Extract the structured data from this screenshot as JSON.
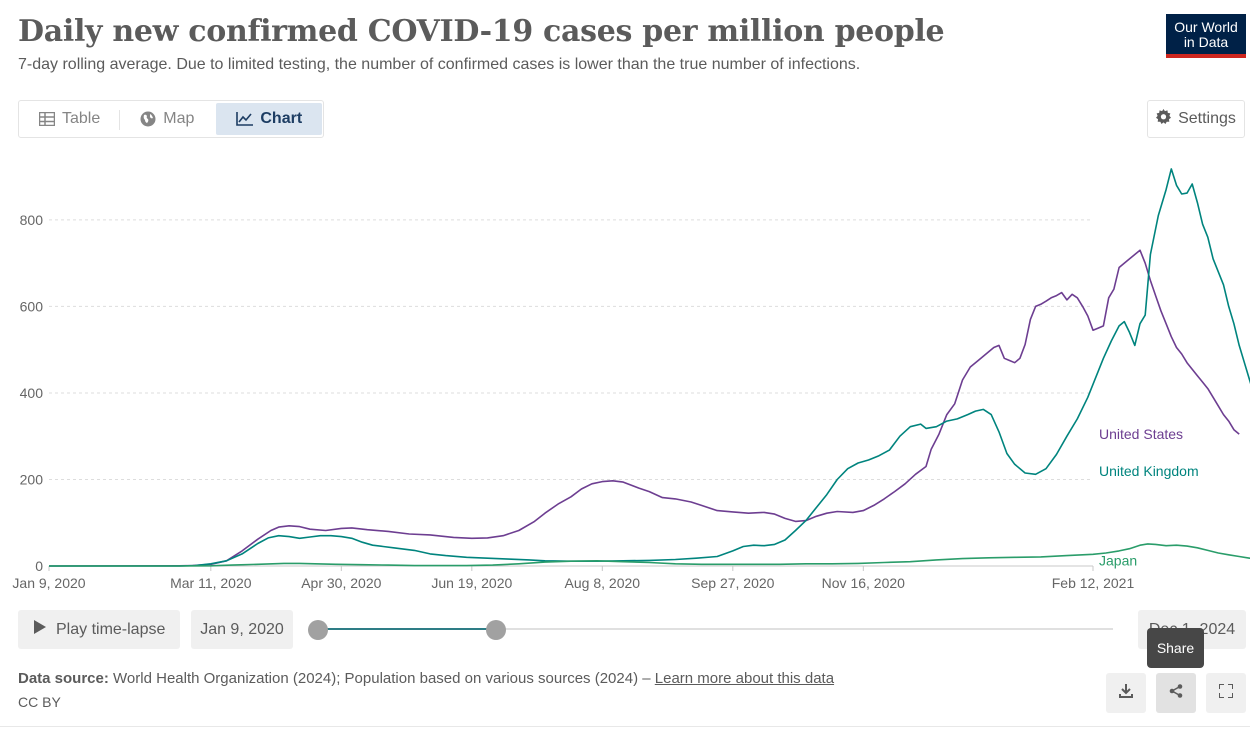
{
  "header": {
    "title": "Daily new confirmed COVID-19 cases per million people",
    "subtitle": "7-day rolling average. Due to limited testing, the number of confirmed cases is lower than the true number of infections.",
    "logo_line1": "Our World",
    "logo_line2": "in Data"
  },
  "tabs": [
    {
      "label": "Table",
      "icon": "table-icon"
    },
    {
      "label": "Map",
      "icon": "globe-icon"
    },
    {
      "label": "Chart",
      "icon": "line-chart-icon",
      "active": true
    }
  ],
  "settings_label": "Settings",
  "timeline": {
    "play_label": "Play time-lapse",
    "start_date": "Jan 9, 2020",
    "end_date": "Dec 1, 2024"
  },
  "tooltip": "Share",
  "footer": {
    "source_label": "Data source:",
    "source_text": "World Health Organization (2024); Population based on various sources (2024) –",
    "learn_more": "Learn more about this data",
    "license": "CC BY"
  },
  "chart_data": {
    "type": "line",
    "title": "Daily new confirmed COVID-19 cases per million people",
    "xlabel": "",
    "ylabel": "",
    "ylim": [
      0,
      920
    ],
    "yticks": [
      0,
      200,
      400,
      600,
      800
    ],
    "x_range_days": [
      0,
      400
    ],
    "x_ticks": [
      {
        "day": 0,
        "label": "Jan 9, 2020"
      },
      {
        "day": 62,
        "label": "Mar 11, 2020"
      },
      {
        "day": 112,
        "label": "Apr 30, 2020"
      },
      {
        "day": 162,
        "label": "Jun 19, 2020"
      },
      {
        "day": 212,
        "label": "Aug 8, 2020"
      },
      {
        "day": 262,
        "label": "Sep 27, 2020"
      },
      {
        "day": 312,
        "label": "Nov 16, 2020"
      },
      {
        "day": 400,
        "label": "Feb 12, 2021"
      }
    ],
    "grid": "horizontal",
    "legend": "labels at line ends (right)",
    "series": [
      {
        "name": "United States",
        "color": "#6d3e91",
        "points": [
          [
            0,
            0
          ],
          [
            50,
            0.5
          ],
          [
            55,
            1
          ],
          [
            62,
            4
          ],
          [
            68,
            12
          ],
          [
            74,
            35
          ],
          [
            80,
            62
          ],
          [
            85,
            82
          ],
          [
            88,
            90
          ],
          [
            92,
            93
          ],
          [
            96,
            91
          ],
          [
            100,
            85
          ],
          [
            106,
            82
          ],
          [
            112,
            87
          ],
          [
            116,
            88
          ],
          [
            122,
            84
          ],
          [
            130,
            80
          ],
          [
            138,
            74
          ],
          [
            146,
            72
          ],
          [
            155,
            66
          ],
          [
            162,
            64
          ],
          [
            168,
            65
          ],
          [
            174,
            70
          ],
          [
            180,
            82
          ],
          [
            186,
            103
          ],
          [
            190,
            122
          ],
          [
            195,
            143
          ],
          [
            200,
            160
          ],
          [
            204,
            178
          ],
          [
            208,
            190
          ],
          [
            212,
            195
          ],
          [
            216,
            197
          ],
          [
            220,
            194
          ],
          [
            226,
            180
          ],
          [
            230,
            172
          ],
          [
            235,
            158
          ],
          [
            240,
            155
          ],
          [
            246,
            148
          ],
          [
            250,
            140
          ],
          [
            256,
            128
          ],
          [
            262,
            125
          ],
          [
            268,
            122
          ],
          [
            274,
            124
          ],
          [
            278,
            120
          ],
          [
            282,
            110
          ],
          [
            286,
            103
          ],
          [
            290,
            105
          ],
          [
            294,
            115
          ],
          [
            298,
            122
          ],
          [
            302,
            126
          ],
          [
            308,
            124
          ],
          [
            312,
            128
          ],
          [
            316,
            140
          ],
          [
            320,
            155
          ],
          [
            324,
            172
          ],
          [
            328,
            190
          ],
          [
            332,
            212
          ],
          [
            336,
            230
          ],
          [
            338,
            270
          ],
          [
            341,
            305
          ],
          [
            344,
            350
          ],
          [
            347,
            375
          ],
          [
            350,
            430
          ],
          [
            353,
            460
          ],
          [
            356,
            475
          ],
          [
            359,
            490
          ],
          [
            362,
            505
          ],
          [
            364,
            510
          ],
          [
            366,
            480
          ],
          [
            368,
            475
          ],
          [
            370,
            470
          ],
          [
            372,
            480
          ],
          [
            374,
            512
          ],
          [
            376,
            570
          ],
          [
            378,
            600
          ],
          [
            380,
            605
          ],
          [
            382,
            612
          ],
          [
            384,
            620
          ],
          [
            386,
            625
          ],
          [
            388,
            632
          ],
          [
            390,
            615
          ],
          [
            392,
            628
          ],
          [
            394,
            620
          ],
          [
            396,
            600
          ],
          [
            398,
            578
          ],
          [
            400,
            545
          ],
          [
            402,
            550
          ],
          [
            404,
            555
          ],
          [
            406,
            620
          ],
          [
            408,
            640
          ],
          [
            410,
            690
          ],
          [
            413,
            705
          ],
          [
            416,
            720
          ],
          [
            418,
            730
          ],
          [
            420,
            700
          ],
          [
            422,
            660
          ],
          [
            424,
            625
          ],
          [
            426,
            590
          ],
          [
            428,
            560
          ],
          [
            430,
            530
          ],
          [
            432,
            505
          ],
          [
            434,
            490
          ],
          [
            436,
            470
          ],
          [
            438,
            455
          ],
          [
            440,
            440
          ],
          [
            442,
            425
          ],
          [
            444,
            410
          ],
          [
            446,
            390
          ],
          [
            448,
            370
          ],
          [
            450,
            350
          ],
          [
            452,
            335
          ],
          [
            454,
            315
          ],
          [
            456,
            305
          ]
        ]
      },
      {
        "name": "United Kingdom",
        "color": "#00847e",
        "points": [
          [
            0,
            0
          ],
          [
            50,
            0
          ],
          [
            56,
            1
          ],
          [
            62,
            5
          ],
          [
            68,
            12
          ],
          [
            74,
            28
          ],
          [
            80,
            52
          ],
          [
            84,
            65
          ],
          [
            88,
            70
          ],
          [
            92,
            68
          ],
          [
            96,
            64
          ],
          [
            100,
            67
          ],
          [
            104,
            70
          ],
          [
            108,
            70
          ],
          [
            112,
            68
          ],
          [
            116,
            64
          ],
          [
            120,
            55
          ],
          [
            124,
            48
          ],
          [
            128,
            45
          ],
          [
            132,
            42
          ],
          [
            140,
            36
          ],
          [
            146,
            28
          ],
          [
            152,
            24
          ],
          [
            160,
            20
          ],
          [
            168,
            18
          ],
          [
            176,
            16
          ],
          [
            184,
            14
          ],
          [
            190,
            12
          ],
          [
            200,
            11
          ],
          [
            210,
            11
          ],
          [
            220,
            12
          ],
          [
            230,
            13
          ],
          [
            240,
            15
          ],
          [
            248,
            18
          ],
          [
            256,
            22
          ],
          [
            262,
            35
          ],
          [
            266,
            45
          ],
          [
            270,
            48
          ],
          [
            274,
            47
          ],
          [
            278,
            50
          ],
          [
            282,
            60
          ],
          [
            286,
            82
          ],
          [
            290,
            105
          ],
          [
            294,
            135
          ],
          [
            298,
            165
          ],
          [
            302,
            200
          ],
          [
            306,
            225
          ],
          [
            310,
            238
          ],
          [
            314,
            245
          ],
          [
            318,
            255
          ],
          [
            322,
            268
          ],
          [
            326,
            300
          ],
          [
            330,
            322
          ],
          [
            334,
            328
          ],
          [
            336,
            318
          ],
          [
            340,
            322
          ],
          [
            344,
            335
          ],
          [
            348,
            340
          ],
          [
            352,
            350
          ],
          [
            355,
            358
          ],
          [
            358,
            362
          ],
          [
            361,
            350
          ],
          [
            364,
            310
          ],
          [
            367,
            260
          ],
          [
            370,
            235
          ],
          [
            374,
            215
          ],
          [
            378,
            212
          ],
          [
            382,
            225
          ],
          [
            386,
            258
          ],
          [
            390,
            300
          ],
          [
            394,
            340
          ],
          [
            398,
            390
          ],
          [
            402,
            450
          ],
          [
            404,
            480
          ],
          [
            407,
            520
          ],
          [
            410,
            555
          ],
          [
            412,
            565
          ],
          [
            414,
            540
          ],
          [
            416,
            510
          ],
          [
            418,
            560
          ],
          [
            420,
            580
          ],
          [
            422,
            720
          ],
          [
            425,
            810
          ],
          [
            428,
            870
          ],
          [
            430,
            918
          ],
          [
            432,
            880
          ],
          [
            434,
            860
          ],
          [
            436,
            862
          ],
          [
            438,
            883
          ],
          [
            440,
            840
          ],
          [
            442,
            790
          ],
          [
            444,
            760
          ],
          [
            446,
            710
          ],
          [
            448,
            680
          ],
          [
            450,
            650
          ],
          [
            452,
            600
          ],
          [
            454,
            560
          ],
          [
            456,
            510
          ],
          [
            458,
            470
          ],
          [
            460,
            430
          ],
          [
            462,
            390
          ],
          [
            464,
            355
          ],
          [
            466,
            330
          ],
          [
            468,
            300
          ],
          [
            470,
            275
          ],
          [
            472,
            258
          ],
          [
            474,
            240
          ],
          [
            476,
            220
          ]
        ]
      },
      {
        "name": "Japan",
        "color": "#2a9d6a",
        "points": [
          [
            0,
            0
          ],
          [
            50,
            0
          ],
          [
            62,
            0.5
          ],
          [
            70,
            2
          ],
          [
            80,
            4
          ],
          [
            90,
            6
          ],
          [
            96,
            6
          ],
          [
            102,
            5
          ],
          [
            110,
            4
          ],
          [
            120,
            3
          ],
          [
            130,
            2
          ],
          [
            140,
            1
          ],
          [
            150,
            1
          ],
          [
            160,
            1
          ],
          [
            170,
            2
          ],
          [
            180,
            5
          ],
          [
            190,
            9
          ],
          [
            200,
            11
          ],
          [
            210,
            12
          ],
          [
            220,
            10
          ],
          [
            230,
            8
          ],
          [
            240,
            5
          ],
          [
            250,
            4
          ],
          [
            260,
            4
          ],
          [
            270,
            4
          ],
          [
            280,
            4
          ],
          [
            290,
            5
          ],
          [
            300,
            5
          ],
          [
            310,
            6
          ],
          [
            320,
            8
          ],
          [
            330,
            10
          ],
          [
            340,
            14
          ],
          [
            350,
            17
          ],
          [
            360,
            19
          ],
          [
            370,
            20
          ],
          [
            380,
            21
          ],
          [
            390,
            24
          ],
          [
            400,
            27
          ],
          [
            405,
            30
          ],
          [
            410,
            35
          ],
          [
            414,
            40
          ],
          [
            418,
            48
          ],
          [
            421,
            51
          ],
          [
            424,
            50
          ],
          [
            428,
            47
          ],
          [
            432,
            48
          ],
          [
            436,
            46
          ],
          [
            440,
            42
          ],
          [
            444,
            36
          ],
          [
            448,
            30
          ],
          [
            452,
            26
          ],
          [
            456,
            22
          ],
          [
            460,
            18
          ],
          [
            464,
            16
          ],
          [
            468,
            15
          ],
          [
            472,
            14
          ],
          [
            476,
            13
          ]
        ]
      }
    ]
  }
}
